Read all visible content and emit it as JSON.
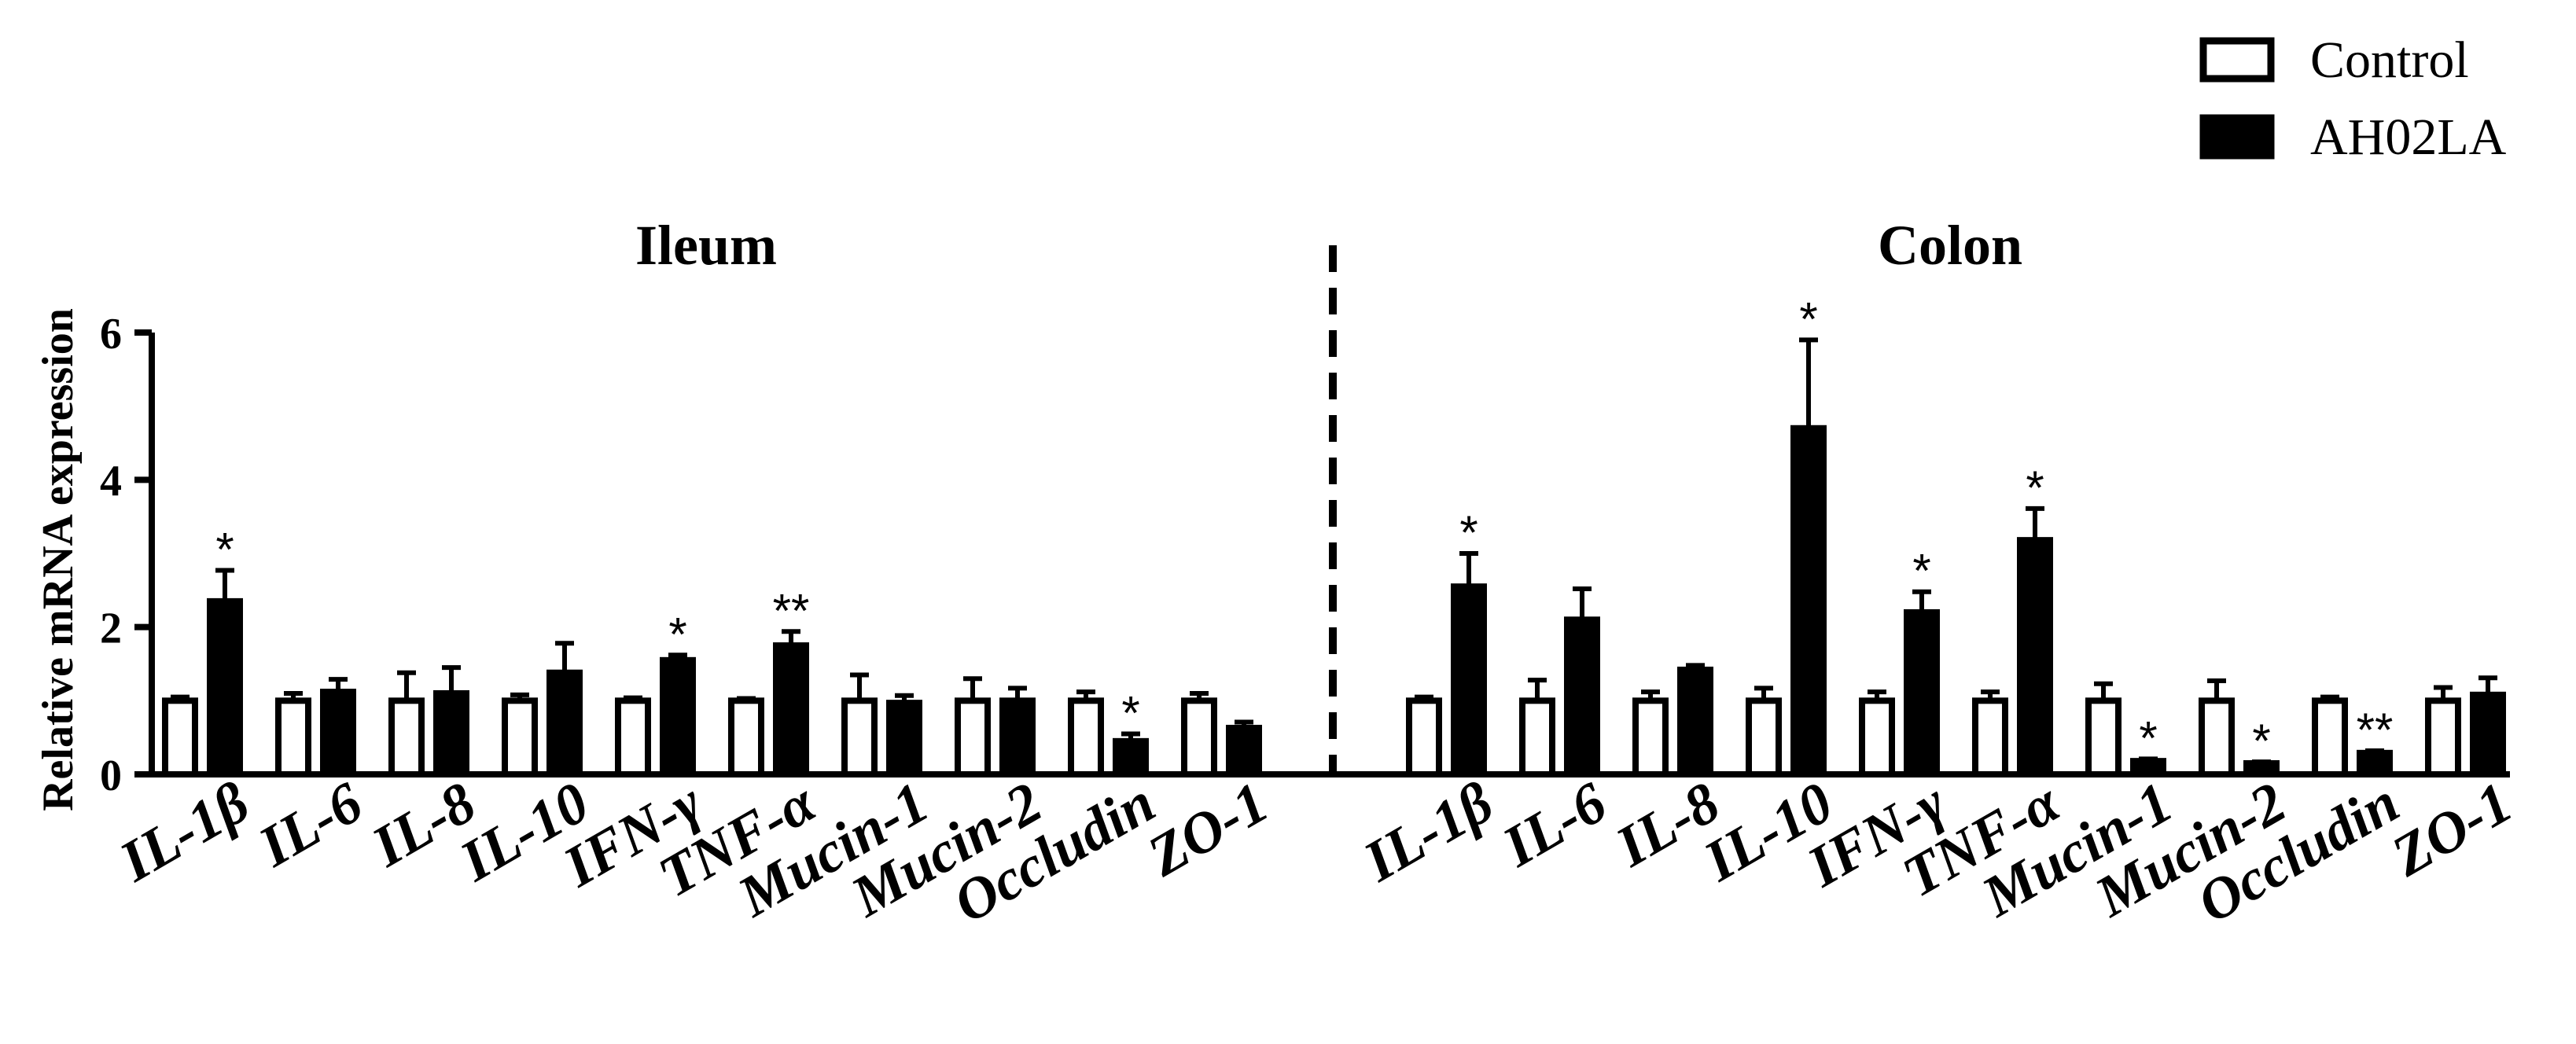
{
  "chart_data": {
    "type": "bar",
    "ylabel": "Relative mRNA expression",
    "ylim": [
      0,
      6
    ],
    "yticks": [
      "0",
      "2",
      "4",
      "6"
    ],
    "legend_position": "top-right",
    "series_names": [
      "Control",
      "AH02LA"
    ],
    "panels": [
      {
        "title": "Ileum",
        "categories": [
          "IL-1β",
          "IL-6",
          "IL-8",
          "IL-10",
          "IFN-γ",
          "TNF-α",
          "Mucin-1",
          "Mucin-2",
          "Occludin",
          "ZO-1"
        ],
        "series": [
          {
            "name": "Control",
            "values": [
              1.0,
              1.0,
              1.0,
              1.0,
              1.0,
              1.0,
              1.0,
              1.0,
              1.0,
              1.0
            ],
            "errors": [
              0.05,
              0.1,
              0.38,
              0.08,
              0.04,
              0.03,
              0.35,
              0.3,
              0.12,
              0.1
            ]
          },
          {
            "name": "AH02LA",
            "values": [
              2.35,
              1.12,
              1.1,
              1.38,
              1.55,
              1.75,
              0.97,
              1.0,
              0.45,
              0.63
            ],
            "errors": [
              0.42,
              0.17,
              0.35,
              0.4,
              0.07,
              0.19,
              0.1,
              0.17,
              0.1,
              0.08
            ],
            "significance": [
              "*",
              "",
              "",
              "",
              "*",
              "**",
              "",
              "",
              "*",
              ""
            ]
          }
        ]
      },
      {
        "title": "Colon",
        "categories": [
          "IL-1β",
          "IL-6",
          "IL-8",
          "IL-10",
          "IFN-γ",
          "TNF-α",
          "Mucin-1",
          "Mucin-2",
          "Occludin",
          "ZO-1"
        ],
        "series": [
          {
            "name": "Control",
            "values": [
              1.0,
              1.0,
              1.0,
              1.0,
              1.0,
              1.0,
              1.0,
              1.0,
              1.0,
              1.0
            ],
            "errors": [
              0.05,
              0.28,
              0.12,
              0.17,
              0.12,
              0.12,
              0.23,
              0.27,
              0.05,
              0.18
            ]
          },
          {
            "name": "AH02LA",
            "values": [
              2.55,
              2.1,
              1.42,
              4.7,
              2.2,
              3.18,
              0.18,
              0.15,
              0.29,
              1.08
            ],
            "errors": [
              0.45,
              0.42,
              0.06,
              1.2,
              0.28,
              0.43,
              0.03,
              0.02,
              0.03,
              0.23
            ],
            "significance": [
              "*",
              "",
              "",
              "*",
              "*",
              "*",
              "*",
              "*",
              "**",
              ""
            ]
          }
        ]
      }
    ]
  }
}
